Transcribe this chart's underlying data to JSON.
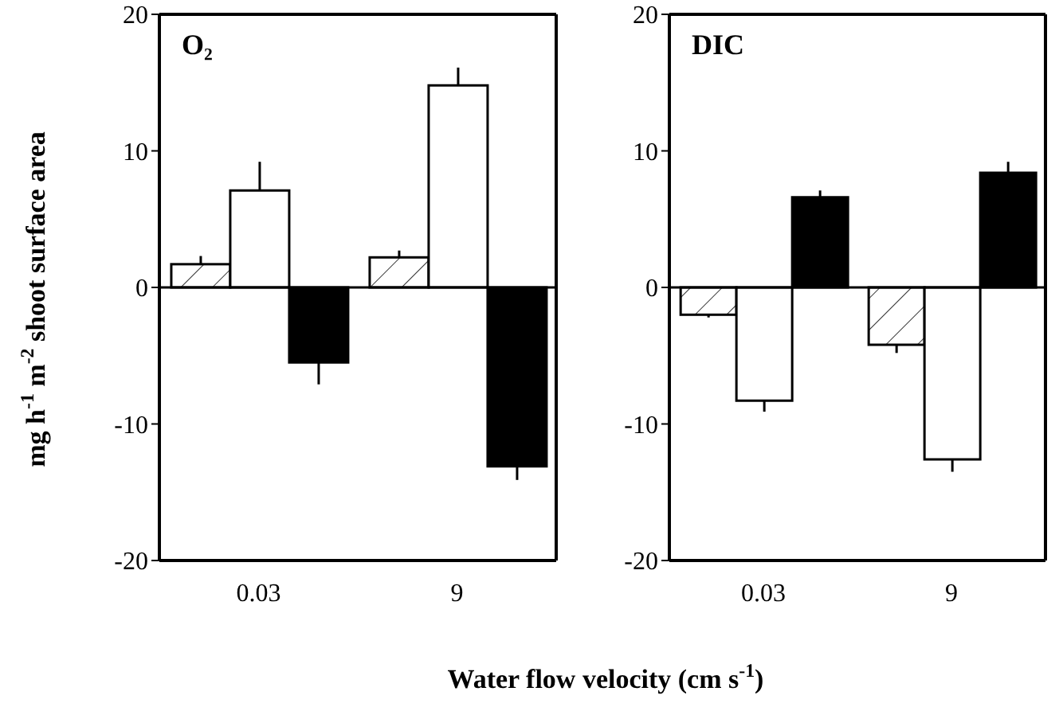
{
  "chart_data": [
    {
      "type": "bar",
      "title": "O₂",
      "ylabel": "mg h$^{-1}$ m$^{-2}$ shoot surface area",
      "xlabel": "Water flow velocity (cm s$^{-1}$)",
      "categories": [
        "0.03",
        "9"
      ],
      "series": [
        {
          "color": "#ffffff",
          "values": [
            1.7,
            2.2
          ],
          "errors": [
            [
              1.7,
              2.3
            ],
            [
              2.2,
              2.7
            ]
          ]
        },
        {
          "color": "#ffffff",
          "values": [
            7.1,
            14.8
          ],
          "errors": [
            [
              7.1,
              9.2
            ],
            [
              14.8,
              16.1
            ]
          ]
        },
        {
          "color": "#000000",
          "values": [
            -5.5,
            -13.1
          ],
          "errors": [
            [
              -7.1,
              -5.5
            ],
            [
              -14.1,
              -13.1
            ]
          ]
        }
      ],
      "ylim": [
        -20,
        20
      ],
      "yticks": [
        -20,
        -10,
        0,
        10,
        20
      ],
      "ref_lines": [
        {
          "axis": "y",
          "value": 0,
          "color": "#000000"
        }
      ]
    },
    {
      "type": "bar",
      "title": "DIC",
      "categories": [
        "0.03",
        "9"
      ],
      "series": [
        {
          "color": "#ffffff",
          "values": [
            -2.0,
            -4.2
          ],
          "errors": [
            [
              -2.2,
              -2.0
            ],
            [
              -4.8,
              -4.2
            ]
          ]
        },
        {
          "color": "#ffffff",
          "values": [
            -8.3,
            -12.6
          ],
          "errors": [
            [
              -9.1,
              -8.3
            ],
            [
              -13.5,
              -12.6
            ]
          ]
        },
        {
          "color": "#000000",
          "values": [
            6.6,
            8.4
          ],
          "errors": [
            [
              6.6,
              7.1
            ],
            [
              8.4,
              9.2
            ]
          ]
        }
      ],
      "ylim": [
        -20,
        20
      ],
      "yticks": [
        -20,
        -10,
        0,
        10,
        20
      ],
      "ref_lines": [
        {
          "axis": "y",
          "value": 0,
          "color": "#000000"
        }
      ]
    }
  ]
}
